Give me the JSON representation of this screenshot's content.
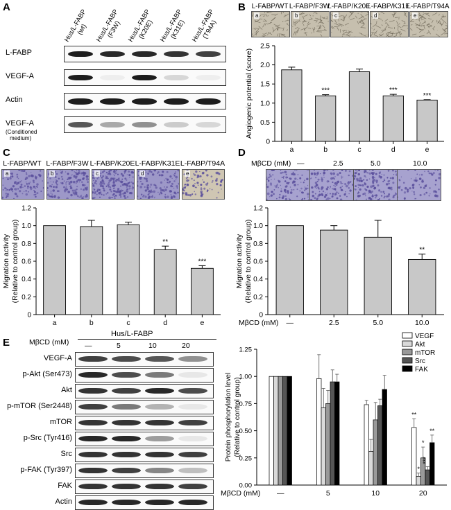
{
  "panels": {
    "A": {
      "label": "A",
      "lanes": [
        "Hus/L-FABP\n(wt)",
        "Hus/L-FABP\n(F3W)",
        "Hus/L-FABP\n(K20E)",
        "Hus/L-FABP\n(K31E)",
        "Hus/L-FABP\n(T94A)"
      ],
      "rows": [
        {
          "name": "L-FABP",
          "sub": "",
          "intensity": [
            0.95,
            0.9,
            0.9,
            0.85,
            0.8
          ]
        },
        {
          "name": "VEGF-A",
          "sub": "",
          "intensity": [
            0.95,
            0.05,
            0.95,
            0.15,
            0.05
          ]
        },
        {
          "name": "Actin",
          "sub": "",
          "intensity": [
            0.95,
            0.95,
            0.95,
            0.95,
            0.95
          ]
        },
        {
          "name": "VEGF-A",
          "sub": "(Conditioned\nmedium)",
          "intensity": [
            0.7,
            0.35,
            0.45,
            0.2,
            0.15
          ]
        }
      ]
    },
    "B": {
      "label": "B",
      "images": [
        {
          "tag": "a",
          "title": "L-FABP/WT"
        },
        {
          "tag": "b",
          "title": "L-FABP/F3W"
        },
        {
          "tag": "c",
          "title": "L-FABP/K20E"
        },
        {
          "tag": "d",
          "title": "L-FABP/K31E"
        },
        {
          "tag": "e",
          "title": "L-FABP/T94A"
        }
      ]
    },
    "C": {
      "label": "C",
      "images": [
        {
          "tag": "a",
          "title": "L-FABP/WT"
        },
        {
          "tag": "b",
          "title": "L-FABP/F3W"
        },
        {
          "tag": "c",
          "title": "L-FABP/K20E"
        },
        {
          "tag": "d",
          "title": "L-FABP/K31E"
        },
        {
          "tag": "e",
          "title": "L-FABP/T94A"
        }
      ]
    },
    "D": {
      "label": "D",
      "header_label": "MβCD (mM)",
      "doses": [
        "—",
        "2.5",
        "5.0",
        "10.0"
      ]
    },
    "E": {
      "label": "E",
      "header_label": "MβCD (mM)",
      "group_label": "Hus/L-FABP",
      "doses": [
        "—",
        "5",
        "10",
        "20"
      ],
      "rows": [
        {
          "name": "VEGF-A",
          "intensity": [
            0.8,
            0.75,
            0.7,
            0.45
          ]
        },
        {
          "name": "p-Akt (Ser473)",
          "intensity": [
            0.9,
            0.75,
            0.55,
            0.08
          ]
        },
        {
          "name": "Akt",
          "intensity": [
            0.85,
            0.8,
            0.9,
            0.75
          ]
        },
        {
          "name": "p-mTOR (Ser2448)",
          "intensity": [
            0.8,
            0.55,
            0.3,
            0.08
          ]
        },
        {
          "name": "mTOR",
          "intensity": [
            0.85,
            0.85,
            0.85,
            0.8
          ]
        },
        {
          "name": "p-Src (Tyr416)",
          "intensity": [
            0.9,
            0.9,
            0.4,
            0.08
          ]
        },
        {
          "name": "Src",
          "intensity": [
            0.85,
            0.85,
            0.85,
            0.8
          ]
        },
        {
          "name": "p-FAK (Tyr397)",
          "intensity": [
            0.85,
            0.8,
            0.5,
            0.25
          ]
        },
        {
          "name": "FAK",
          "intensity": [
            0.85,
            0.85,
            0.85,
            0.8
          ]
        },
        {
          "name": "Actin",
          "intensity": [
            0.9,
            0.9,
            0.9,
            0.9
          ]
        }
      ]
    }
  },
  "chart_data": [
    {
      "id": "B",
      "type": "bar",
      "categories": [
        "a",
        "b",
        "c",
        "d",
        "e"
      ],
      "values": [
        1.87,
        1.19,
        1.82,
        1.19,
        1.08
      ],
      "errors": [
        0.07,
        0.03,
        0.07,
        0.04,
        0.01
      ],
      "significance": [
        "",
        "***",
        "",
        "***",
        "***"
      ],
      "xlabel": "",
      "ylabel": "Angiogenic potential (score)",
      "ylim": [
        0,
        2.5
      ],
      "yticks": [
        "0",
        "0.5",
        "1.0",
        "1.5",
        "2.0",
        "2.5"
      ],
      "ytick_values": [
        0,
        0.5,
        1.0,
        1.5,
        2.0,
        2.5
      ]
    },
    {
      "id": "C",
      "type": "bar",
      "categories": [
        "a",
        "b",
        "c",
        "d",
        "e"
      ],
      "values": [
        1.0,
        0.99,
        1.01,
        0.73,
        0.52
      ],
      "errors": [
        0.0,
        0.07,
        0.03,
        0.04,
        0.03
      ],
      "significance": [
        "",
        "",
        "",
        "**",
        "***"
      ],
      "xlabel": "",
      "ylabel": "Migration activity\n(Relative to control group)",
      "ylim": [
        0,
        1.2
      ],
      "yticks": [
        "0",
        "0.2",
        "0.4",
        "0.6",
        "0.8",
        "1.0",
        "1.2"
      ],
      "ytick_values": [
        0,
        0.2,
        0.4,
        0.6,
        0.8,
        1.0,
        1.2
      ]
    },
    {
      "id": "D",
      "type": "bar",
      "categories": [
        "—",
        "2.5",
        "5.0",
        "10.0"
      ],
      "values": [
        1.0,
        0.95,
        0.87,
        0.62
      ],
      "errors": [
        0.0,
        0.05,
        0.19,
        0.06
      ],
      "significance": [
        "",
        "",
        "",
        "**"
      ],
      "xlabel": "MβCD (mM)",
      "ylabel": "Migration activity\n(Relative to control group)",
      "ylim": [
        0,
        1.2
      ],
      "yticks": [
        "0",
        "0.2",
        "0.4",
        "0.6",
        "0.8",
        "1.0",
        "1.2"
      ],
      "ytick_values": [
        0,
        0.2,
        0.4,
        0.6,
        0.8,
        1.0,
        1.2
      ]
    },
    {
      "id": "E",
      "type": "bar",
      "categories": [
        "—",
        "5",
        "10",
        "20"
      ],
      "series": [
        {
          "name": "VEGF",
          "color": "#ffffff",
          "values": [
            1.0,
            0.98,
            0.74,
            0.53
          ],
          "errors": [
            0,
            0.22,
            0.04,
            0.08
          ],
          "significance": [
            "",
            "",
            "",
            "**"
          ]
        },
        {
          "name": "Akt",
          "color": "#d9d9d9",
          "values": [
            1.0,
            0.71,
            0.31,
            0.08
          ],
          "errors": [
            0,
            0.18,
            0.11,
            0.03
          ],
          "significance": [
            "",
            "",
            "",
            "*"
          ]
        },
        {
          "name": "mTOR",
          "color": "#999999",
          "values": [
            1.0,
            0.75,
            0.6,
            0.25
          ],
          "errors": [
            0,
            0.12,
            0.16,
            0.1
          ],
          "significance": [
            "",
            "",
            "",
            "*"
          ]
        },
        {
          "name": "Src",
          "color": "#555555",
          "values": [
            1.0,
            0.95,
            0.73,
            0.14
          ],
          "errors": [
            0,
            0.11,
            0.06,
            0.03
          ],
          "significance": [
            "",
            "",
            "",
            "***"
          ]
        },
        {
          "name": "FAK",
          "color": "#000000",
          "values": [
            1.0,
            0.95,
            0.88,
            0.39
          ],
          "errors": [
            0,
            0.07,
            0.13,
            0.07
          ],
          "significance": [
            "",
            "",
            "",
            "**"
          ]
        }
      ],
      "xlabel": "MβCD (mM)",
      "ylabel": "Protein phosphorylation level\n(Relative to control group)",
      "ylim": [
        0,
        1.25
      ],
      "yticks": [
        "0.00",
        "0.25",
        "0.50",
        "0.75",
        "1.00",
        "1.25"
      ],
      "ytick_values": [
        0,
        0.25,
        0.5,
        0.75,
        1.0,
        1.25
      ],
      "legend_position": "top-right"
    }
  ],
  "colors": {
    "bar_fill": "#c8c8c8",
    "band": "#111111",
    "stain_purple": "#5a4f9c",
    "stain_tan": "#c9b99a"
  }
}
